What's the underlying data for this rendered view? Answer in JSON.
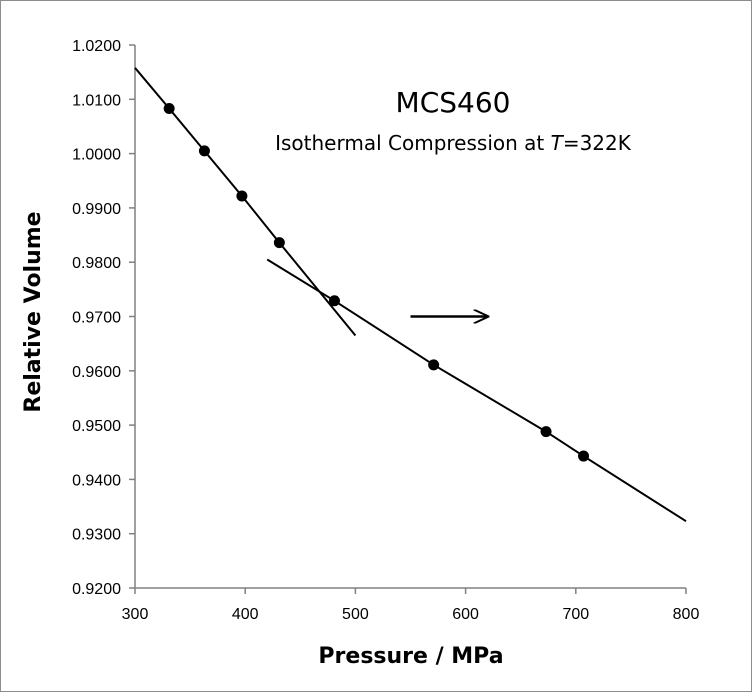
{
  "chart_data": {
    "type": "scatter",
    "title": "MCS460",
    "subtitle": {
      "prefix": "Isothermal Compression at ",
      "italic": "T",
      "suffix": "=322K"
    },
    "xlabel": "Pressure / MPa",
    "ylabel": "Relative Volume",
    "xlim": [
      300,
      800
    ],
    "ylim": [
      0.92,
      1.02
    ],
    "x_ticks": [
      "300",
      "400",
      "500",
      "600",
      "700",
      "800"
    ],
    "y_ticks": [
      "0.9200",
      "0.9300",
      "0.9400",
      "0.9500",
      "0.9600",
      "0.9700",
      "0.9800",
      "0.9900",
      "1.0000",
      "1.0100",
      "1.0200"
    ],
    "series": [
      {
        "points": [
          [
            331,
            1.0083
          ],
          [
            363,
            1.0005
          ],
          [
            397,
            0.9922
          ],
          [
            431,
            0.9836
          ],
          [
            481,
            0.9729
          ],
          [
            571,
            0.9611
          ],
          [
            673,
            0.9488
          ],
          [
            707,
            0.9443
          ]
        ]
      }
    ],
    "fit_lines": [
      {
        "points": [
          [
            300,
            1.0158
          ],
          [
            331,
            1.0083
          ],
          [
            363,
            1.0005
          ],
          [
            397,
            0.9922
          ],
          [
            431,
            0.9836
          ],
          [
            469,
            0.9742
          ],
          [
            500,
            0.9665
          ]
        ]
      },
      {
        "points": [
          [
            420,
            0.9805
          ],
          [
            481,
            0.9729
          ],
          [
            571,
            0.9611
          ],
          [
            673,
            0.9488
          ],
          [
            707,
            0.9443
          ],
          [
            800,
            0.9323
          ]
        ]
      }
    ],
    "annotations": [
      {
        "type": "arrow",
        "from": [
          550,
          0.97
        ],
        "to": [
          620,
          0.97
        ]
      }
    ],
    "grid": false,
    "legend": "none"
  }
}
